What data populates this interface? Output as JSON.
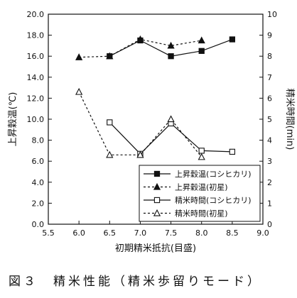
{
  "caption": "図３　精米性能（精米歩留りモード）",
  "chart_data": {
    "type": "line",
    "title": "",
    "xlabel": "初期精米抵抗(目盛)",
    "ylabel_left": "上昇穀温(℃)",
    "ylabel_right": "精米時間(min)",
    "xlim": [
      5.5,
      9.0
    ],
    "xticks": [
      "5.5",
      "6.0",
      "6.5",
      "7.0",
      "7.5",
      "8.0",
      "8.5",
      "9.0"
    ],
    "ylim_left": [
      0.0,
      20.0
    ],
    "yticks_left": [
      "0.0",
      "2.0",
      "4.0",
      "6.0",
      "8.0",
      "10.0",
      "12.0",
      "14.0",
      "16.0",
      "18.0",
      "20.0"
    ],
    "ylim_right": [
      0,
      10
    ],
    "yticks_right": [
      "0",
      "1",
      "2",
      "3",
      "4",
      "5",
      "6",
      "7",
      "8",
      "9",
      "10"
    ],
    "grid": false,
    "legend_position": "bottom-right",
    "series": [
      {
        "name": "上昇穀温(コシヒカリ)",
        "axis": "left",
        "marker": "filled-square",
        "line": "solid",
        "x": [
          6.5,
          7.0,
          7.5,
          8.0,
          8.5
        ],
        "y": [
          16.0,
          17.5,
          16.0,
          16.5,
          17.6
        ]
      },
      {
        "name": "上昇穀温(初星)",
        "axis": "left",
        "marker": "filled-triangle",
        "line": "dotted",
        "x": [
          6.0,
          6.5,
          7.0,
          7.5,
          8.0
        ],
        "y": [
          15.9,
          16.0,
          17.6,
          17.0,
          17.5
        ]
      },
      {
        "name": "精米時間(コシヒカリ)",
        "axis": "right",
        "marker": "open-square",
        "line": "solid",
        "x": [
          6.5,
          7.0,
          7.5,
          8.0,
          8.5
        ],
        "y": [
          4.85,
          3.35,
          4.8,
          3.5,
          3.45
        ]
      },
      {
        "name": "精米時間(初星)",
        "axis": "right",
        "marker": "open-triangle",
        "line": "dotted",
        "x": [
          6.0,
          6.5,
          7.0,
          7.5,
          8.0
        ],
        "y": [
          6.3,
          3.3,
          3.3,
          5.0,
          3.2
        ]
      }
    ]
  }
}
